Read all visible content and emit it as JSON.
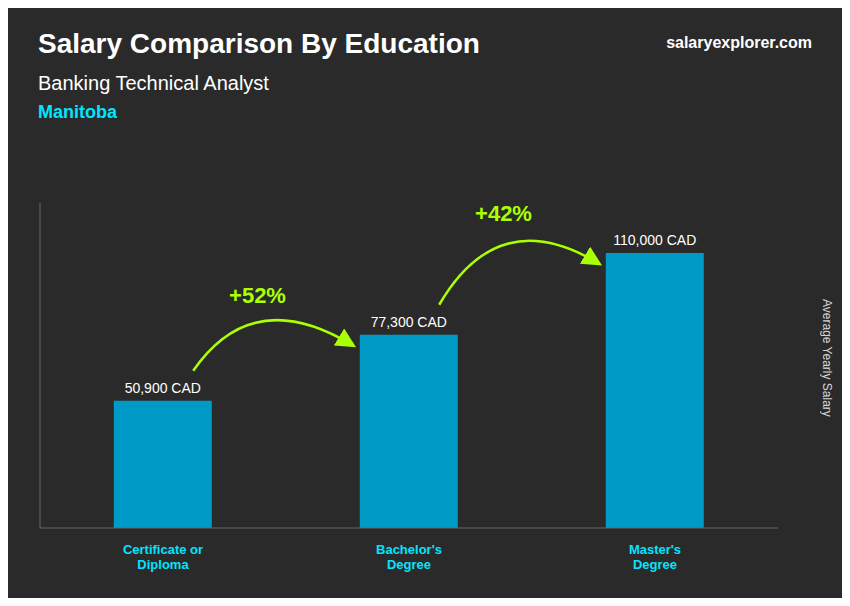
{
  "chart_data": {
    "type": "bar",
    "title": "Salary Comparison By Education",
    "subtitle": [
      "Banking Technical Analyst",
      "Manitoba"
    ],
    "y_label": "Average Yearly Salary",
    "categories": [
      "Certificate or\nDiploma",
      "Bachelor's\nDegree",
      "Master's\nDegree"
    ],
    "values": [
      50900,
      77300,
      110000
    ],
    "value_labels": [
      "50,900 CAD",
      "77,300 CAD",
      "110,000 CAD"
    ],
    "data_labels": true,
    "color": "#009ac7",
    "ylim": [
      0,
      130000
    ],
    "tick_labels": "x",
    "grid": false,
    "annotations": [
      {
        "text": "+52%",
        "from": "Certificate or\nDiploma",
        "to": "Bachelor's\nDegree"
      },
      {
        "text": "+42%",
        "from": "Bachelor's\nDegree",
        "to": "Master's\nDegree"
      },
      {
        "text": "salaryexplorer.com"
      }
    ]
  }
}
